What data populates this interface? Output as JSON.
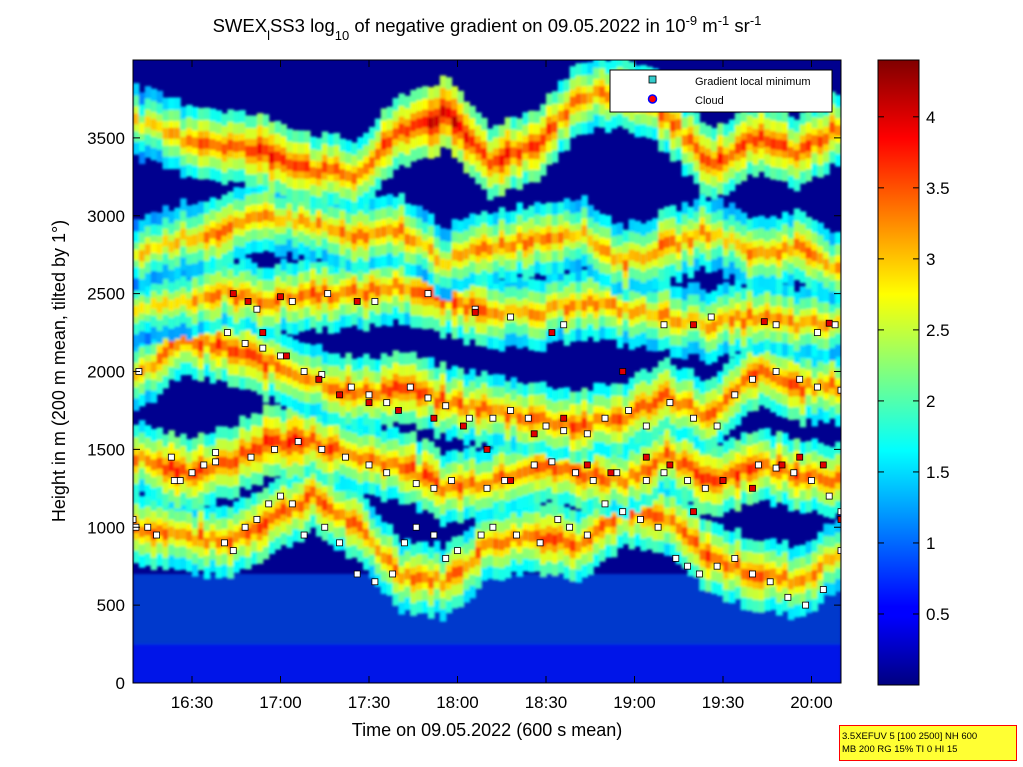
{
  "chart_data": {
    "type": "heatmap",
    "title": {
      "parts": [
        {
          "text": "SWEX"
        },
        {
          "text": "l",
          "sub": true
        },
        {
          "text": "SS3 log"
        },
        {
          "text": "10",
          "sub": true
        },
        {
          "text": " of negative gradient on 09.05.2022 in 10"
        },
        {
          "text": "-9",
          "sup": true
        },
        {
          "text": " m"
        },
        {
          "text": "-1",
          "sup": true
        },
        {
          "text": " sr"
        },
        {
          "text": "-1",
          "sup": true
        }
      ]
    },
    "xlabel": "Time on 09.05.2022 (600 s mean)",
    "ylabel": "Height in m (200 m mean, tilted by 1°)",
    "x_ticks": [
      "16:30",
      "17:00",
      "17:30",
      "18:00",
      "18:30",
      "19:00",
      "19:30",
      "20:00"
    ],
    "x_tick_minutes": [
      990,
      1020,
      1050,
      1080,
      1110,
      1140,
      1170,
      1200
    ],
    "xlim_minutes": [
      970,
      1210
    ],
    "y_ticks": [
      0,
      500,
      1000,
      1500,
      2000,
      2500,
      3000,
      3500
    ],
    "ylim": [
      0,
      4000
    ],
    "colorbar": {
      "ticks": [
        0.5,
        1,
        1.5,
        2,
        2.5,
        3,
        3.5,
        4
      ],
      "range": [
        0,
        4.4
      ],
      "colormap": "jet"
    },
    "legend": {
      "placement": "top-right",
      "entries": [
        {
          "label": "Gradient local minimum",
          "marker": "square",
          "color": "#33cccc"
        },
        {
          "label": "Cloud",
          "marker": "circle",
          "color": "#ff0000",
          "edge": "#0000ff"
        }
      ]
    },
    "layers": [
      {
        "name": "layer-1",
        "t": [
          970,
          985,
          1000,
          1015,
          1030,
          1045,
          1060,
          1075,
          1090,
          1105,
          1120,
          1135,
          1150,
          1165,
          1180,
          1195,
          1210
        ],
        "h": [
          1000,
          950,
          900,
          1050,
          1200,
          1000,
          700,
          650,
          900,
          950,
          900,
          1100,
          1050,
          800,
          700,
          650,
          850
        ],
        "strength": [
          3.1,
          3.0,
          3.0,
          3.2,
          3.2,
          3.0,
          2.9,
          3.0,
          3.1,
          3.2,
          3.1,
          3.0,
          3.0,
          3.2,
          3.1,
          3.0,
          2.9
        ]
      },
      {
        "name": "layer-2",
        "t": [
          970,
          985,
          1000,
          1015,
          1030,
          1045,
          1060,
          1075,
          1090,
          1105,
          1120,
          1135,
          1150,
          1165,
          1180,
          1195,
          1210
        ],
        "h": [
          1450,
          1350,
          1400,
          1550,
          1550,
          1450,
          1400,
          1250,
          1300,
          1400,
          1350,
          1300,
          1450,
          1300,
          1400,
          1350,
          1300
        ],
        "strength": [
          3.0,
          3.3,
          3.1,
          3.4,
          3.3,
          3.0,
          3.2,
          3.1,
          3.0,
          3.1,
          3.2,
          3.0,
          3.1,
          3.3,
          3.2,
          3.2,
          3.0
        ]
      },
      {
        "name": "layer-3",
        "t": [
          970,
          985,
          1000,
          1015,
          1030,
          1045,
          1060,
          1075,
          1090,
          1105,
          1120,
          1135,
          1150,
          1165,
          1180,
          1195,
          1210
        ],
        "h": [
          1950,
          2200,
          2150,
          2050,
          1950,
          1850,
          1900,
          1800,
          1750,
          1700,
          1650,
          1700,
          1850,
          1700,
          2000,
          1900,
          1900
        ],
        "strength": [
          2.8,
          3.1,
          3.2,
          3.2,
          3.0,
          3.1,
          3.2,
          3.1,
          3.0,
          3.1,
          3.2,
          3.1,
          3.0,
          3.1,
          3.2,
          3.1,
          3.0
        ]
      },
      {
        "name": "layer-4",
        "t": [
          970,
          985,
          1000,
          1015,
          1030,
          1045,
          1060,
          1075,
          1090,
          1105,
          1120,
          1135,
          1150,
          1165,
          1180,
          1195,
          1210
        ],
        "h": [
          2400,
          2450,
          2500,
          2450,
          2500,
          2500,
          2550,
          2450,
          2400,
          2350,
          2450,
          2400,
          2350,
          2300,
          2350,
          2300,
          2300
        ],
        "strength": [
          2.5,
          2.7,
          2.9,
          3.0,
          3.1,
          3.0,
          2.9,
          3.2,
          3.0,
          2.8,
          2.9,
          2.8,
          2.9,
          2.8,
          3.0,
          2.9,
          2.7
        ]
      },
      {
        "name": "layer-5",
        "t": [
          970,
          985,
          1000,
          1015,
          1030,
          1045,
          1060,
          1075,
          1090,
          1105,
          1120,
          1135,
          1150,
          1165,
          1180,
          1195,
          1210
        ],
        "h": [
          2750,
          2850,
          2900,
          3000,
          2950,
          2850,
          2900,
          2700,
          2800,
          2850,
          2900,
          2700,
          2800,
          2900,
          2750,
          2800,
          2650
        ],
        "strength": [
          2.6,
          2.8,
          3.0,
          2.9,
          2.8,
          3.0,
          2.9,
          2.7,
          2.9,
          3.0,
          2.8,
          2.9,
          3.0,
          2.8,
          2.9,
          3.0,
          2.8
        ]
      },
      {
        "name": "layer-6",
        "t": [
          970,
          985,
          1000,
          1015,
          1030,
          1045,
          1060,
          1075,
          1090,
          1105,
          1120,
          1135,
          1150,
          1165,
          1180,
          1195,
          1210
        ],
        "h": [
          3600,
          3500,
          3450,
          3400,
          3300,
          3250,
          3550,
          3650,
          3350,
          3450,
          3750,
          3800,
          3650,
          3300,
          3500,
          3400,
          3600
        ],
        "strength": [
          2.6,
          3.0,
          3.2,
          3.4,
          3.2,
          3.1,
          3.3,
          3.8,
          3.4,
          3.3,
          3.0,
          3.2,
          3.1,
          3.3,
          3.2,
          3.3,
          3.0
        ]
      }
    ],
    "min_markers": [
      [
        970,
        1050
      ],
      [
        971,
        1000
      ],
      [
        972,
        2000
      ],
      [
        975,
        1000
      ],
      [
        978,
        950
      ],
      [
        983,
        1450
      ],
      [
        986,
        1300
      ],
      [
        990,
        1350
      ],
      [
        994,
        1400
      ],
      [
        998,
        1480
      ],
      [
        1001,
        900
      ],
      [
        1004,
        850
      ],
      [
        1008,
        1000
      ],
      [
        1012,
        1050
      ],
      [
        1016,
        1150
      ],
      [
        1020,
        1200
      ],
      [
        1024,
        1150
      ],
      [
        1028,
        950
      ],
      [
        1035,
        1000
      ],
      [
        1040,
        900
      ],
      [
        1046,
        700
      ],
      [
        1052,
        650
      ],
      [
        1058,
        700
      ],
      [
        1062,
        900
      ],
      [
        1066,
        1000
      ],
      [
        1072,
        950
      ],
      [
        1076,
        800
      ],
      [
        1080,
        850
      ],
      [
        1088,
        950
      ],
      [
        1092,
        1000
      ],
      [
        1100,
        950
      ],
      [
        1108,
        900
      ],
      [
        1114,
        1050
      ],
      [
        1118,
        1000
      ],
      [
        1124,
        950
      ],
      [
        1130,
        1150
      ],
      [
        1136,
        1100
      ],
      [
        1142,
        1050
      ],
      [
        1148,
        1000
      ],
      [
        1154,
        800
      ],
      [
        1158,
        750
      ],
      [
        1162,
        700
      ],
      [
        1168,
        750
      ],
      [
        1174,
        800
      ],
      [
        1180,
        700
      ],
      [
        1186,
        650
      ],
      [
        1192,
        550
      ],
      [
        1198,
        500
      ],
      [
        1204,
        600
      ],
      [
        1210,
        850
      ],
      [
        984,
        1300
      ],
      [
        998,
        1420
      ],
      [
        1010,
        1450
      ],
      [
        1018,
        1500
      ],
      [
        1026,
        1550
      ],
      [
        1034,
        1500
      ],
      [
        1042,
        1450
      ],
      [
        1050,
        1400
      ],
      [
        1056,
        1350
      ],
      [
        1066,
        1280
      ],
      [
        1072,
        1250
      ],
      [
        1078,
        1300
      ],
      [
        1090,
        1250
      ],
      [
        1096,
        1300
      ],
      [
        1106,
        1400
      ],
      [
        1112,
        1420
      ],
      [
        1120,
        1350
      ],
      [
        1126,
        1300
      ],
      [
        1134,
        1350
      ],
      [
        1144,
        1300
      ],
      [
        1150,
        1350
      ],
      [
        1158,
        1300
      ],
      [
        1164,
        1250
      ],
      [
        1170,
        1300
      ],
      [
        1182,
        1400
      ],
      [
        1188,
        1380
      ],
      [
        1194,
        1350
      ],
      [
        1200,
        1300
      ],
      [
        1206,
        1200
      ],
      [
        1210,
        1100
      ],
      [
        1002,
        2250
      ],
      [
        1008,
        2180
      ],
      [
        1014,
        2150
      ],
      [
        1020,
        2100
      ],
      [
        1028,
        2000
      ],
      [
        1034,
        1980
      ],
      [
        1044,
        1900
      ],
      [
        1050,
        1850
      ],
      [
        1056,
        1800
      ],
      [
        1064,
        1900
      ],
      [
        1070,
        1830
      ],
      [
        1076,
        1780
      ],
      [
        1084,
        1700
      ],
      [
        1092,
        1700
      ],
      [
        1098,
        1750
      ],
      [
        1104,
        1700
      ],
      [
        1110,
        1650
      ],
      [
        1116,
        1620
      ],
      [
        1124,
        1600
      ],
      [
        1130,
        1700
      ],
      [
        1138,
        1750
      ],
      [
        1144,
        1650
      ],
      [
        1152,
        1800
      ],
      [
        1160,
        1700
      ],
      [
        1168,
        1650
      ],
      [
        1174,
        1850
      ],
      [
        1180,
        1950
      ],
      [
        1188,
        2000
      ],
      [
        1196,
        1950
      ],
      [
        1202,
        1900
      ],
      [
        1210,
        1880
      ],
      [
        1012,
        2400
      ],
      [
        1024,
        2450
      ],
      [
        1036,
        2500
      ],
      [
        1052,
        2450
      ],
      [
        1070,
        2500
      ],
      [
        1086,
        2400
      ],
      [
        1098,
        2350
      ],
      [
        1116,
        2300
      ],
      [
        1150,
        2300
      ],
      [
        1166,
        2350
      ],
      [
        1188,
        2300
      ],
      [
        1202,
        2250
      ],
      [
        1208,
        2300
      ]
    ],
    "cloud_markers": [
      [
        1004,
        2500
      ],
      [
        1009,
        2450
      ],
      [
        1014,
        2250
      ],
      [
        1022,
        2100
      ],
      [
        1033,
        1950
      ],
      [
        1040,
        1850
      ],
      [
        1050,
        1800
      ],
      [
        1060,
        1750
      ],
      [
        1072,
        1700
      ],
      [
        1082,
        1650
      ],
      [
        1090,
        1500
      ],
      [
        1098,
        1300
      ],
      [
        1106,
        1600
      ],
      [
        1116,
        1700
      ],
      [
        1124,
        1400
      ],
      [
        1132,
        1350
      ],
      [
        1144,
        1450
      ],
      [
        1152,
        1400
      ],
      [
        1160,
        1100
      ],
      [
        1170,
        1300
      ],
      [
        1180,
        1250
      ],
      [
        1190,
        1400
      ],
      [
        1196,
        1450
      ],
      [
        1204,
        1400
      ],
      [
        1210,
        1050
      ],
      [
        1020,
        2480
      ],
      [
        1046,
        2450
      ],
      [
        1086,
        2380
      ],
      [
        1112,
        2250
      ],
      [
        1136,
        2000
      ],
      [
        1160,
        2300
      ],
      [
        1184,
        2320
      ],
      [
        1206,
        2310
      ]
    ]
  },
  "infobox": {
    "line1": "3.5XEFUV 5 [100 2500] NH 600",
    "line2": "MB 200 RG 15% TI 0 HI 15"
  }
}
